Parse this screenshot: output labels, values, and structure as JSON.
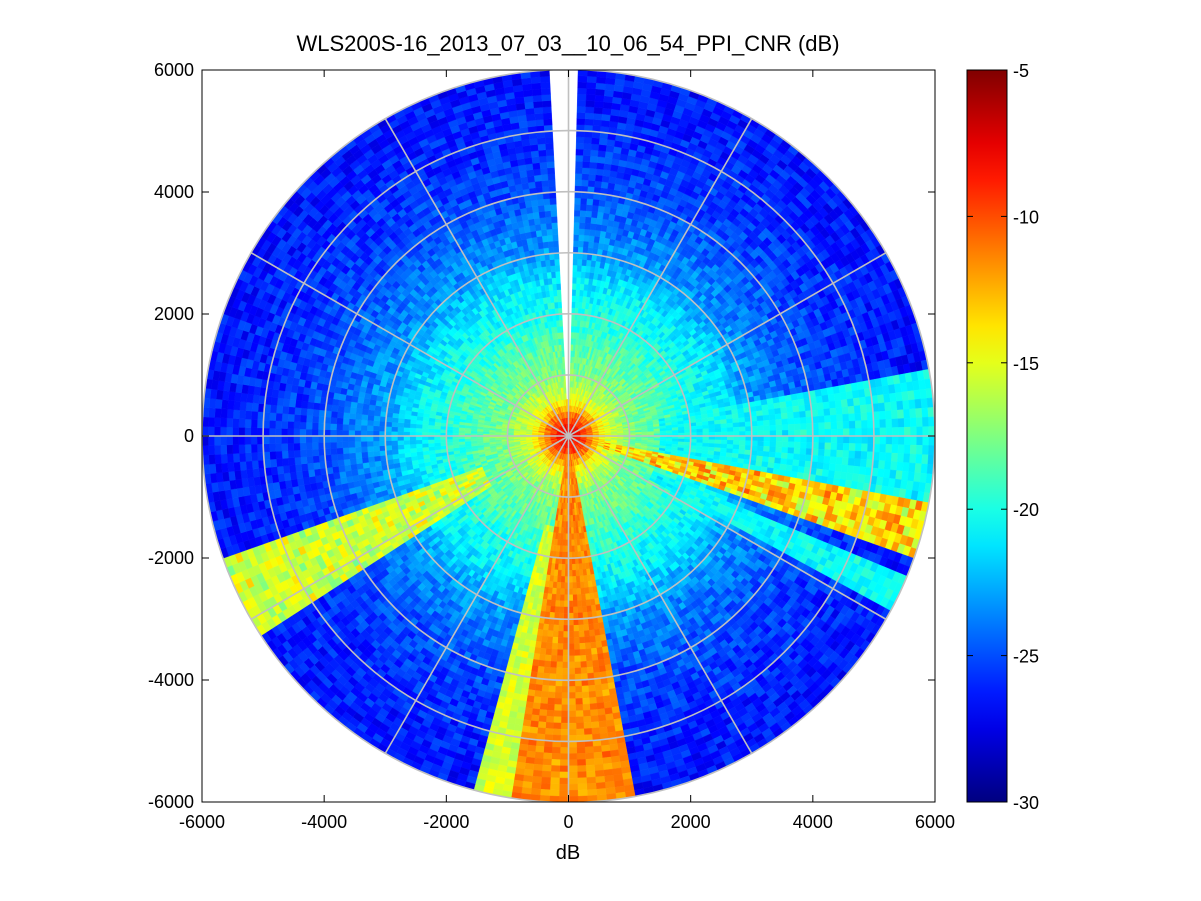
{
  "chart_data": {
    "type": "heatmap",
    "title": "WLS200S-16_2013_07_03__10_06_54_PPI_CNR (dB)",
    "xlabel": "dB",
    "ylabel": "",
    "xlim": [
      -6000,
      6000
    ],
    "ylim": [
      -6000,
      6000
    ],
    "x_ticks": [
      -6000,
      -4000,
      -2000,
      0,
      2000,
      4000,
      6000
    ],
    "y_ticks": [
      6000,
      4000,
      2000,
      0,
      -2000,
      -4000,
      -6000
    ],
    "x_tick_labels": [
      "-6000",
      "-4000",
      "-2000",
      "0",
      "2000",
      "4000",
      "6000"
    ],
    "y_tick_labels": [
      "6000",
      "4000",
      "2000",
      "0",
      "-2000",
      "-4000",
      "-6000"
    ],
    "polar_grid": {
      "ring_radii": [
        1000,
        2000,
        3000,
        4000,
        5000,
        6000
      ],
      "spoke_angles_deg": [
        0,
        30,
        60,
        90,
        120,
        150,
        180,
        210,
        240,
        270,
        300,
        330
      ]
    },
    "max_range": 6000,
    "colorbar": {
      "range": [
        -30,
        -5
      ],
      "ticks": [
        -5,
        -10,
        -15,
        -20,
        -25,
        -30
      ],
      "tick_labels": [
        "-5",
        "-10",
        "-15",
        "-20",
        "-25",
        "-30"
      ],
      "colormap": "jet"
    },
    "cnr_profile": {
      "range_m": [
        0,
        300,
        600,
        1000,
        1500,
        2000,
        2500,
        3000,
        4000,
        5000,
        6000
      ],
      "background_db": [
        -7,
        -10,
        -15,
        -17.5,
        -18.5,
        -20,
        -21,
        -23,
        -25,
        -26,
        -26.5
      ]
    },
    "sectors": [
      {
        "name": "south-plume",
        "bearing_from_deg": 170,
        "bearing_to_deg": 189,
        "range_from_m": 300,
        "range_to_m": 6000,
        "cnr_db": [
          -12,
          -11
        ]
      },
      {
        "name": "south-edge",
        "bearing_from_deg": 189,
        "bearing_to_deg": 195,
        "range_from_m": 1500,
        "range_to_m": 6000,
        "cnr_db": [
          -16,
          -15
        ]
      },
      {
        "name": "southwest-plume",
        "bearing_from_deg": 237,
        "bearing_to_deg": 250,
        "range_from_m": 1500,
        "range_to_m": 6000,
        "cnr_db": [
          -17,
          -14
        ]
      },
      {
        "name": "east-southeast-plume",
        "bearing_from_deg": 100,
        "bearing_to_deg": 110,
        "range_from_m": 500,
        "range_to_m": 6000,
        "cnr_db": [
          -16,
          -11
        ]
      },
      {
        "name": "east-corridor",
        "bearing_from_deg": 80,
        "bearing_to_deg": 100,
        "range_from_m": 1500,
        "range_to_m": 6000,
        "cnr_db": [
          -21,
          -20
        ]
      },
      {
        "name": "southeast-edge",
        "bearing_from_deg": 112,
        "bearing_to_deg": 118,
        "range_from_m": 1500,
        "range_to_m": 6000,
        "cnr_db": [
          -21,
          -20
        ]
      }
    ],
    "no_data_gap": {
      "bearing_from_deg": 357,
      "bearing_to_deg": 1,
      "range_from_m": 600,
      "range_to_m": 6000
    }
  }
}
